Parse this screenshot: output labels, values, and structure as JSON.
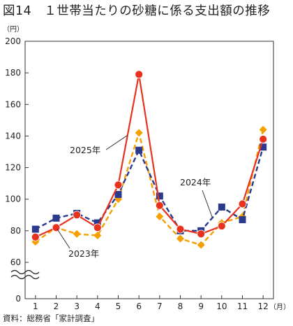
{
  "title": "図14　１世帯当たりの砂糖に係る支出額の推移",
  "source": "資料：総務省「家計調査」",
  "chart_data": {
    "type": "line",
    "ylabel": "（円）",
    "xlabel": "（月）",
    "categories": [
      "1",
      "2",
      "3",
      "4",
      "5",
      "6",
      "7",
      "8",
      "9",
      "10",
      "11",
      "12"
    ],
    "ylim": [
      60,
      200
    ],
    "y_axis_break": true,
    "yticks": [
      "0",
      "60",
      "80",
      "100",
      "120",
      "140",
      "160",
      "180",
      "200"
    ],
    "grid": false,
    "series": [
      {
        "name": "2023年",
        "color": "#f5a000",
        "style": "dashed",
        "marker": "diamond",
        "values": [
          73,
          82,
          78,
          77,
          100,
          142,
          89,
          75,
          71,
          85,
          89,
          144
        ]
      },
      {
        "name": "2024年",
        "color": "#2a3a8c",
        "style": "dashed",
        "marker": "square",
        "values": [
          81,
          88,
          91,
          85,
          103,
          131,
          102,
          80,
          80,
          95,
          87,
          133
        ]
      },
      {
        "name": "2025年",
        "color": "#e8321e",
        "style": "solid",
        "marker": "circle",
        "values": [
          76,
          82,
          90,
          82,
          109,
          179,
          96,
          81,
          78,
          83,
          97,
          138
        ]
      }
    ]
  }
}
